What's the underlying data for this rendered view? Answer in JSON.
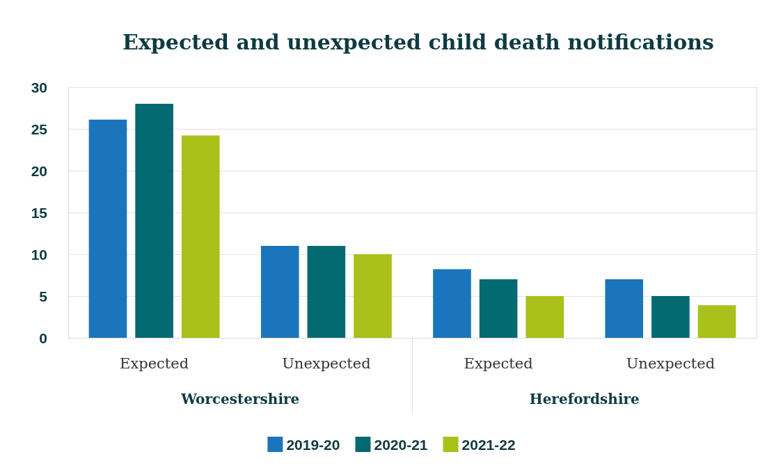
{
  "chart_data": {
    "type": "bar",
    "title": "Expected and unexpected child death notifications",
    "categories": [
      "Expected",
      "Unexpected",
      "Expected",
      "Unexpected"
    ],
    "annotations": [
      "Worcestershire",
      "Herefordshire"
    ],
    "series": [
      {
        "name": "2019-20",
        "color": "#1b75bc",
        "values": [
          26.1,
          11,
          8.2,
          7
        ]
      },
      {
        "name": "2020-21",
        "color": "#046a72",
        "values": [
          28,
          11,
          7,
          5
        ]
      },
      {
        "name": "2021-22",
        "color": "#a9c11a",
        "values": [
          24.2,
          10,
          5,
          3.9
        ]
      }
    ],
    "ylim": [
      0,
      30
    ],
    "yticks": [
      0,
      5,
      10,
      15,
      20,
      25,
      30
    ],
    "grid": "y",
    "legend": "bottom"
  }
}
